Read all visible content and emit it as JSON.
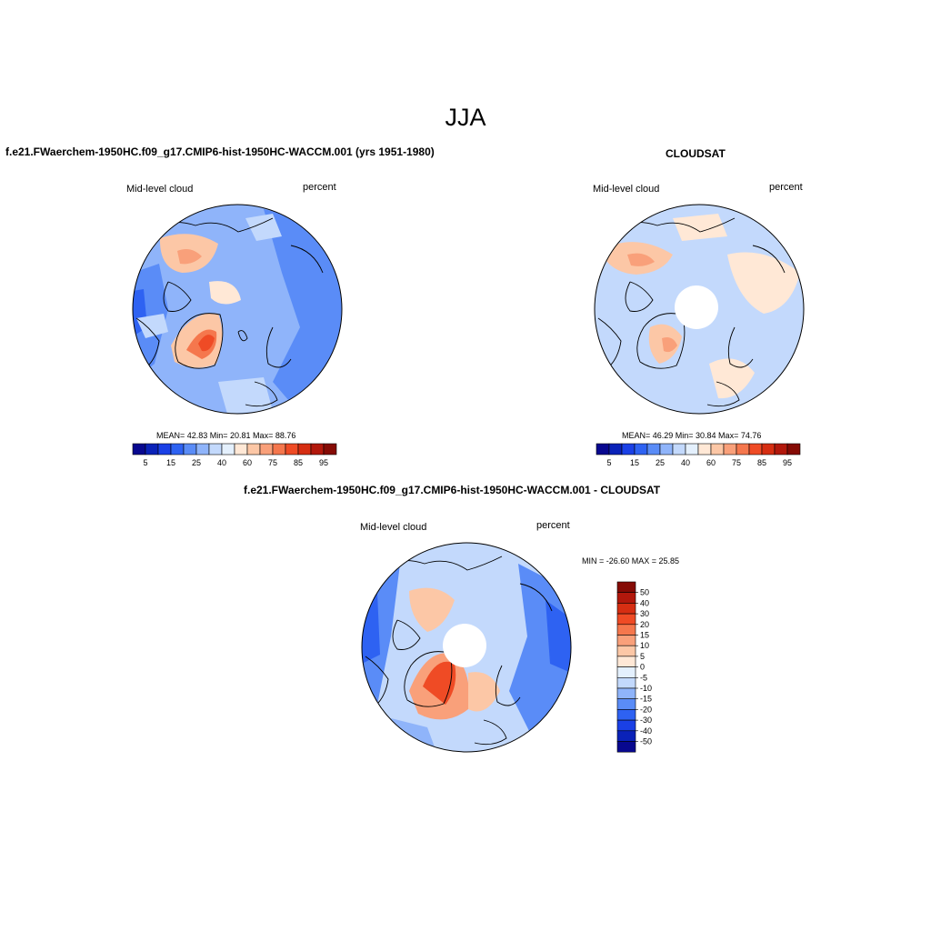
{
  "title": "JJA",
  "colors": {
    "scale": [
      "#08088f",
      "#0a22b8",
      "#1a40e6",
      "#2e62f2",
      "#5a8cf7",
      "#8fb4fa",
      "#c3d9fc",
      "#e4f0fd",
      "#ffe8d6",
      "#fcc7a6",
      "#f9a07a",
      "#f5774d",
      "#ef4b25",
      "#d62e12",
      "#b2180c",
      "#850b05"
    ],
    "land": "#000000",
    "hole": "#ffffff"
  },
  "panels": [
    {
      "title": "f.e21.FWaerchem-1950HC.f09_g17.CMIP6-hist-1950HC-WACCM.001 (yrs 1951-1980)",
      "variable": "Mid-level cloud",
      "units": "percent",
      "stats": "MEAN=  42.83  Min=  20.81  Max=  88.76",
      "colorbar_ticks": [
        "5",
        "15",
        "25",
        "40",
        "60",
        "75",
        "85",
        "95"
      ],
      "pole_hole": false
    },
    {
      "title": "CLOUDSAT",
      "variable": "Mid-level cloud",
      "units": "percent",
      "stats": "MEAN=  46.29  Min=  30.84  Max=  74.76",
      "colorbar_ticks": [
        "5",
        "15",
        "25",
        "40",
        "60",
        "75",
        "85",
        "95"
      ],
      "pole_hole": true
    },
    {
      "title": "f.e21.FWaerchem-1950HC.f09_g17.CMIP6-hist-1950HC-WACCM.001 - CLOUDSAT",
      "variable": "Mid-level cloud",
      "units": "percent",
      "stats": "MIN = -26.60 MAX =  25.85",
      "colorbar_ticks": [
        "50",
        "40",
        "30",
        "20",
        "15",
        "10",
        "5",
        "0",
        "-5",
        "-10",
        "-15",
        "-20",
        "-30",
        "-40",
        "-50"
      ],
      "pole_hole": true
    }
  ]
}
